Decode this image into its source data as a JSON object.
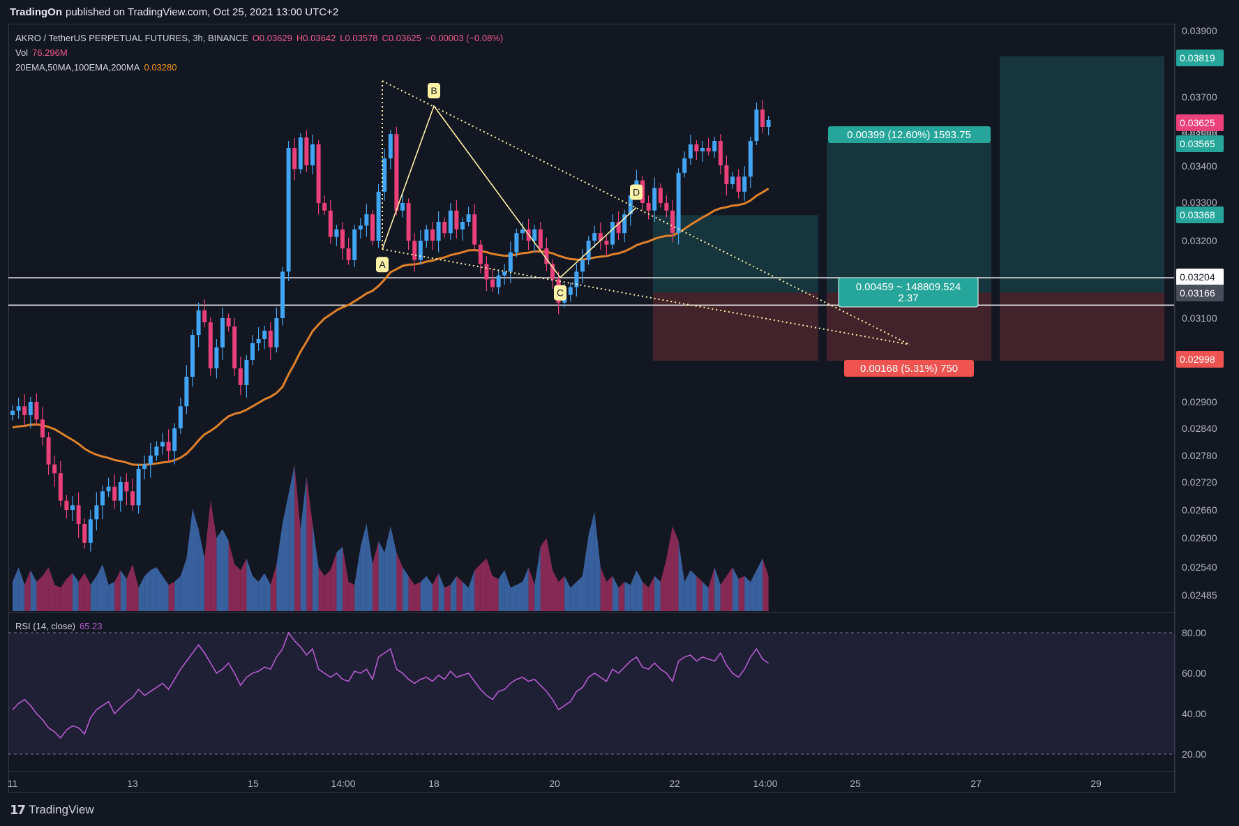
{
  "header": {
    "publisher": "TradingOn",
    "published_text": "published on TradingView.com, Oct 25, 2021 13:00 UTC+2"
  },
  "legend": {
    "symbol": "AKRO / TetherUS PERPETUAL FUTURES, 3h, BINANCE",
    "open": "O0.03629",
    "high": "H0.03642",
    "low": "L0.03578",
    "close": "C0.03625",
    "change": "−0.00003 (−0.08%)",
    "vol_label": "Vol",
    "vol_value": "76.296M",
    "ma_label": "20EMA,50MA,100EMA,200MA",
    "ma_value": "0.03280"
  },
  "rsi": {
    "label": "RSI (14, close)",
    "value": "65.23"
  },
  "footer": {
    "brand": "TradingView",
    "logo_glyph": "17"
  },
  "colors": {
    "up": "#42a5f5",
    "down": "#ec407a",
    "ema": "#e0822a",
    "rsi": "#b55dcf",
    "pattern": "#fff3a8",
    "profit": "#26a69a",
    "loss": "#ef5350"
  },
  "chart_data": {
    "type": "candlestick",
    "symbol": "AKRO/USDT",
    "timeframe": "3h",
    "y_ticks": [
      "0.03900",
      "0.03800",
      "0.03700",
      "0.03600",
      "0.03500",
      "0.03400",
      "0.03300",
      "0.03200",
      "0.03100",
      "0.02900",
      "0.02840",
      "0.02780",
      "0.02720",
      "0.02660",
      "0.02600",
      "0.02540",
      "0.02485"
    ],
    "x_ticks": [
      "11",
      "13",
      "15",
      "14:00",
      "18",
      "20",
      "22",
      "14:00",
      "25",
      "27",
      "29"
    ],
    "rsi_ticks": [
      "80.00",
      "60.00",
      "40.00",
      "20.00"
    ],
    "price_labels": [
      {
        "text": "0.03819",
        "kind": "target"
      },
      {
        "text": "0.03625",
        "kind": "last"
      },
      {
        "text": "0.03565",
        "kind": "target"
      },
      {
        "text": "0.03368",
        "kind": "target"
      },
      {
        "text": "0.03204",
        "kind": "level"
      },
      {
        "text": "0.03166",
        "kind": "entry"
      },
      {
        "text": "0.02998",
        "kind": "stop"
      }
    ],
    "closes": [
      0.0288,
      0.0289,
      0.0287,
      0.029,
      0.0286,
      0.0282,
      0.0276,
      0.0274,
      0.0268,
      0.0266,
      0.0267,
      0.0263,
      0.0259,
      0.0264,
      0.0267,
      0.027,
      0.0271,
      0.0268,
      0.0272,
      0.027,
      0.0267,
      0.0275,
      0.0276,
      0.0278,
      0.028,
      0.0281,
      0.0279,
      0.0284,
      0.0289,
      0.0296,
      0.0306,
      0.0312,
      0.0309,
      0.0298,
      0.0303,
      0.031,
      0.0308,
      0.0298,
      0.0294,
      0.03,
      0.0304,
      0.0305,
      0.0307,
      0.0303,
      0.031,
      0.0322,
      0.0355,
      0.0349,
      0.0358,
      0.035,
      0.0356,
      0.034,
      0.0338,
      0.0331,
      0.0333,
      0.0328,
      0.0325,
      0.0333,
      0.0334,
      0.0337,
      0.033,
      0.0343,
      0.0352,
      0.0359,
      0.0338,
      0.034,
      0.033,
      0.0325,
      0.033,
      0.0333,
      0.033,
      0.0335,
      0.0332,
      0.0338,
      0.0333,
      0.0335,
      0.0337,
      0.0329,
      0.0324,
      0.032,
      0.0318,
      0.0321,
      0.0322,
      0.0327,
      0.0332,
      0.0333,
      0.033,
      0.0333,
      0.0328,
      0.0324,
      0.032,
      0.0314,
      0.0316,
      0.0318,
      0.0322,
      0.0325,
      0.033,
      0.0332,
      0.033,
      0.0329,
      0.0335,
      0.0332,
      0.0337,
      0.0342,
      0.0346,
      0.034,
      0.0338,
      0.0344,
      0.034,
      0.0338,
      0.0332,
      0.0348,
      0.0352,
      0.0356,
      0.0354,
      0.0355,
      0.0354,
      0.0357,
      0.035,
      0.0345,
      0.0347,
      0.0343,
      0.0347,
      0.0357,
      0.0366,
      0.0361,
      0.0363
    ],
    "volumes": [
      10,
      15,
      9,
      14,
      10,
      12,
      15,
      9,
      8,
      11,
      13,
      10,
      13,
      9,
      12,
      16,
      9,
      10,
      14,
      11,
      16,
      8,
      12,
      14,
      15,
      12,
      9,
      10,
      12,
      18,
      35,
      28,
      18,
      38,
      25,
      28,
      24,
      16,
      14,
      18,
      12,
      10,
      13,
      9,
      16,
      30,
      40,
      50,
      28,
      46,
      30,
      15,
      12,
      14,
      20,
      22,
      10,
      9,
      22,
      30,
      16,
      24,
      20,
      29,
      20,
      15,
      12,
      9,
      10,
      12,
      9,
      13,
      8,
      9,
      12,
      10,
      8,
      14,
      16,
      18,
      12,
      11,
      14,
      8,
      9,
      10,
      15,
      9,
      22,
      25,
      14,
      10,
      12,
      8,
      10,
      12,
      26,
      34,
      15,
      10,
      12,
      8,
      10,
      9,
      14,
      10,
      8,
      12,
      10,
      18,
      29,
      24,
      10,
      14,
      12,
      10,
      8,
      15,
      9,
      12,
      15,
      11,
      12,
      10,
      14,
      18,
      12
    ],
    "rsi_values": [
      42,
      45,
      47,
      44,
      40,
      37,
      33,
      31,
      28,
      32,
      34,
      33,
      30,
      38,
      42,
      44,
      46,
      40,
      43,
      46,
      48,
      52,
      49,
      51,
      53,
      55,
      52,
      57,
      62,
      66,
      70,
      74,
      70,
      65,
      60,
      62,
      65,
      60,
      54,
      58,
      60,
      61,
      63,
      62,
      68,
      72,
      80,
      76,
      73,
      69,
      72,
      62,
      60,
      58,
      60,
      57,
      56,
      61,
      60,
      62,
      57,
      68,
      70,
      72,
      62,
      60,
      57,
      55,
      57,
      58,
      56,
      59,
      57,
      61,
      58,
      59,
      60,
      56,
      52,
      49,
      47,
      51,
      52,
      55,
      57,
      58,
      56,
      57,
      54,
      51,
      47,
      42,
      44,
      46,
      51,
      53,
      58,
      60,
      58,
      56,
      62,
      60,
      63,
      66,
      68,
      63,
      62,
      65,
      62,
      60,
      56,
      66,
      68,
      69,
      66,
      68,
      67,
      66,
      70,
      64,
      60,
      58,
      62,
      68,
      72,
      67,
      65
    ],
    "pattern_points": [
      {
        "label": "A",
        "price": 0.03278
      },
      {
        "label": "B",
        "price": 0.0367
      },
      {
        "label": "C",
        "price": 0.03205
      },
      {
        "label": "D",
        "price": 0.03388
      }
    ],
    "positions": [
      {
        "label": "0.00399 (12.60%) 1593.75",
        "kind": "profit"
      },
      {
        "label": "0.00168 (5.31%) 750",
        "kind": "loss"
      },
      {
        "label": "0.00459 ~ 148809.524",
        "kind": "ratio",
        "sub": "2.37"
      }
    ],
    "ema_last": 0.0328
  }
}
